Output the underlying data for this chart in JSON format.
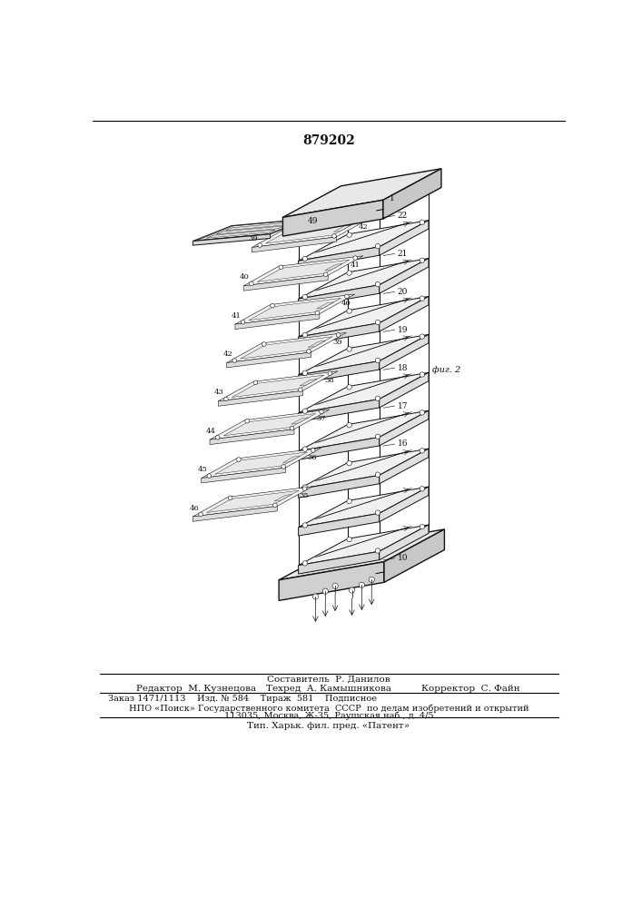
{
  "patent_number": "879202",
  "bg_color": "#ffffff",
  "line_color": "#111111",
  "footer_header": "Составитель  Р. Данилов",
  "footer_line1_left": "Редактор  М. Кузнецова",
  "footer_line1_center": "Техред  А. Камышникова",
  "footer_line1_right": "Корректор  С. Файн",
  "footer_line2a": "Заказ 1471/1113",
  "footer_line2b": "Изд. № 584",
  "footer_line2c": "Тираж  581",
  "footer_line2d": "Подписное",
  "footer_line3": "НПО «Поиск» Государственного комитета  СССР  по делам изобретений и открытий",
  "footer_line4": "113035, Москва, Ж-35, Раушская наб., д. 4/5",
  "footer_line5": "Тип. Харьк. фил. пред. «Патент»",
  "page_width": 7.07,
  "page_height": 10.0
}
